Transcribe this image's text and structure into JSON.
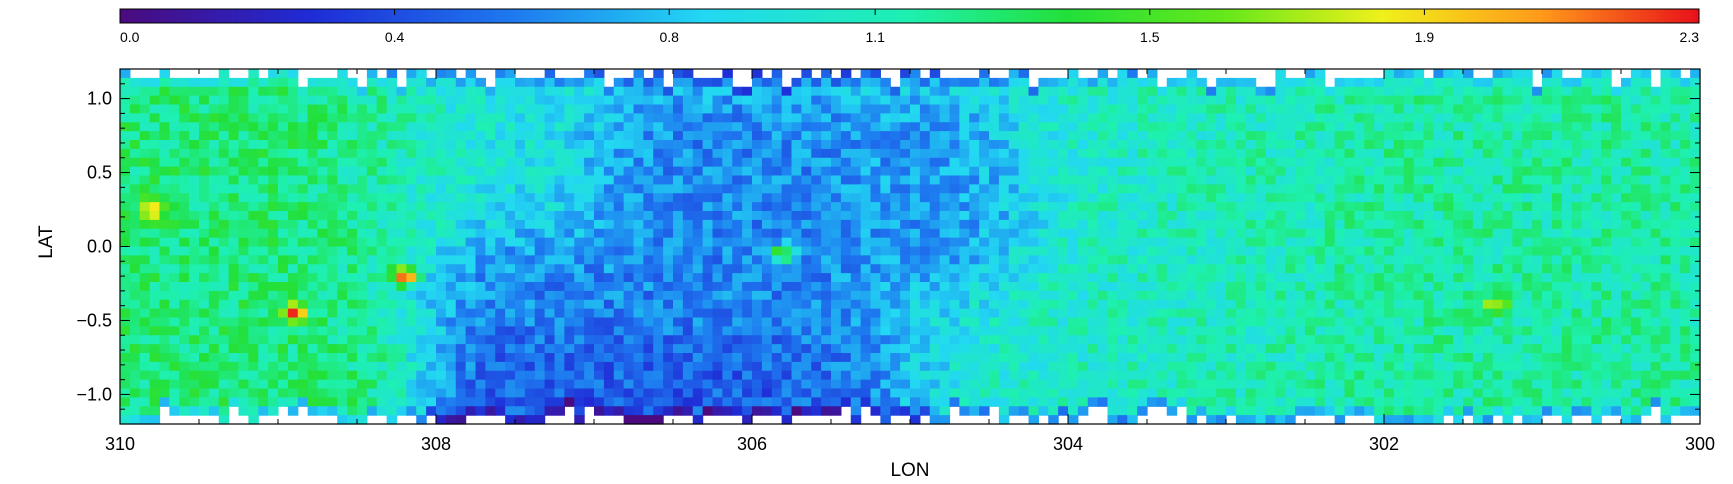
{
  "chart_data": {
    "type": "heatmap",
    "title": "",
    "xlabel": "LON",
    "ylabel": "LAT",
    "xlim": [
      310,
      300
    ],
    "ylim": [
      -1.2,
      1.2
    ],
    "xticks": [
      {
        "value": 310,
        "label": "310"
      },
      {
        "value": 308,
        "label": "308"
      },
      {
        "value": 306,
        "label": "306"
      },
      {
        "value": 304,
        "label": "304"
      },
      {
        "value": 302,
        "label": "302"
      },
      {
        "value": 300,
        "label": "300"
      }
    ],
    "yticks": [
      {
        "value": 1.0,
        "label": "1.0"
      },
      {
        "value": 0.5,
        "label": "0.5"
      },
      {
        "value": 0.0,
        "label": "0.0"
      },
      {
        "value": -0.5,
        "label": "−0.5"
      },
      {
        "value": -1.0,
        "label": "−1.0"
      }
    ],
    "colorbar": {
      "range": [
        0.0,
        2.3
      ],
      "ticks": [
        {
          "value": 0.0,
          "label": "0.0"
        },
        {
          "value": 0.4,
          "label": "0.4"
        },
        {
          "value": 0.8,
          "label": "0.8"
        },
        {
          "value": 1.1,
          "label": "1.1"
        },
        {
          "value": 1.5,
          "label": "1.5"
        },
        {
          "value": 1.9,
          "label": "1.9"
        },
        {
          "value": 2.3,
          "label": "2.3"
        }
      ],
      "colormap": "rainbow"
    },
    "grid": false,
    "approximate_regions": [
      {
        "lon": [
          308.5,
          310
        ],
        "lat": [
          -1.1,
          1.1
        ],
        "value": 1.25
      },
      {
        "lon": [
          305,
          308
        ],
        "lat": [
          -0.3,
          1.1
        ],
        "value": 0.95
      },
      {
        "lon": [
          305.5,
          307.5
        ],
        "lat": [
          -1.15,
          -0.4
        ],
        "value": 0.45
      },
      {
        "lon": [
          305,
          306.3
        ],
        "lat": [
          0.2,
          0.6
        ],
        "value": 0.55
      },
      {
        "lon": [
          303,
          305
        ],
        "lat": [
          -1.1,
          1.1
        ],
        "value": 1.05
      },
      {
        "lon": [
          300,
          303
        ],
        "lat": [
          -1.1,
          1.1
        ],
        "value": 1.15
      }
    ],
    "hotspots": [
      {
        "lon": 309.8,
        "lat": 0.25,
        "value": 2.1
      },
      {
        "lon": 308.2,
        "lat": -0.2,
        "value": 2.2
      },
      {
        "lon": 308.9,
        "lat": -0.45,
        "value": 2.1
      },
      {
        "lon": 301.3,
        "lat": -0.4,
        "value": 1.8
      },
      {
        "lon": 305.8,
        "lat": -0.05,
        "value": 1.6
      }
    ]
  }
}
